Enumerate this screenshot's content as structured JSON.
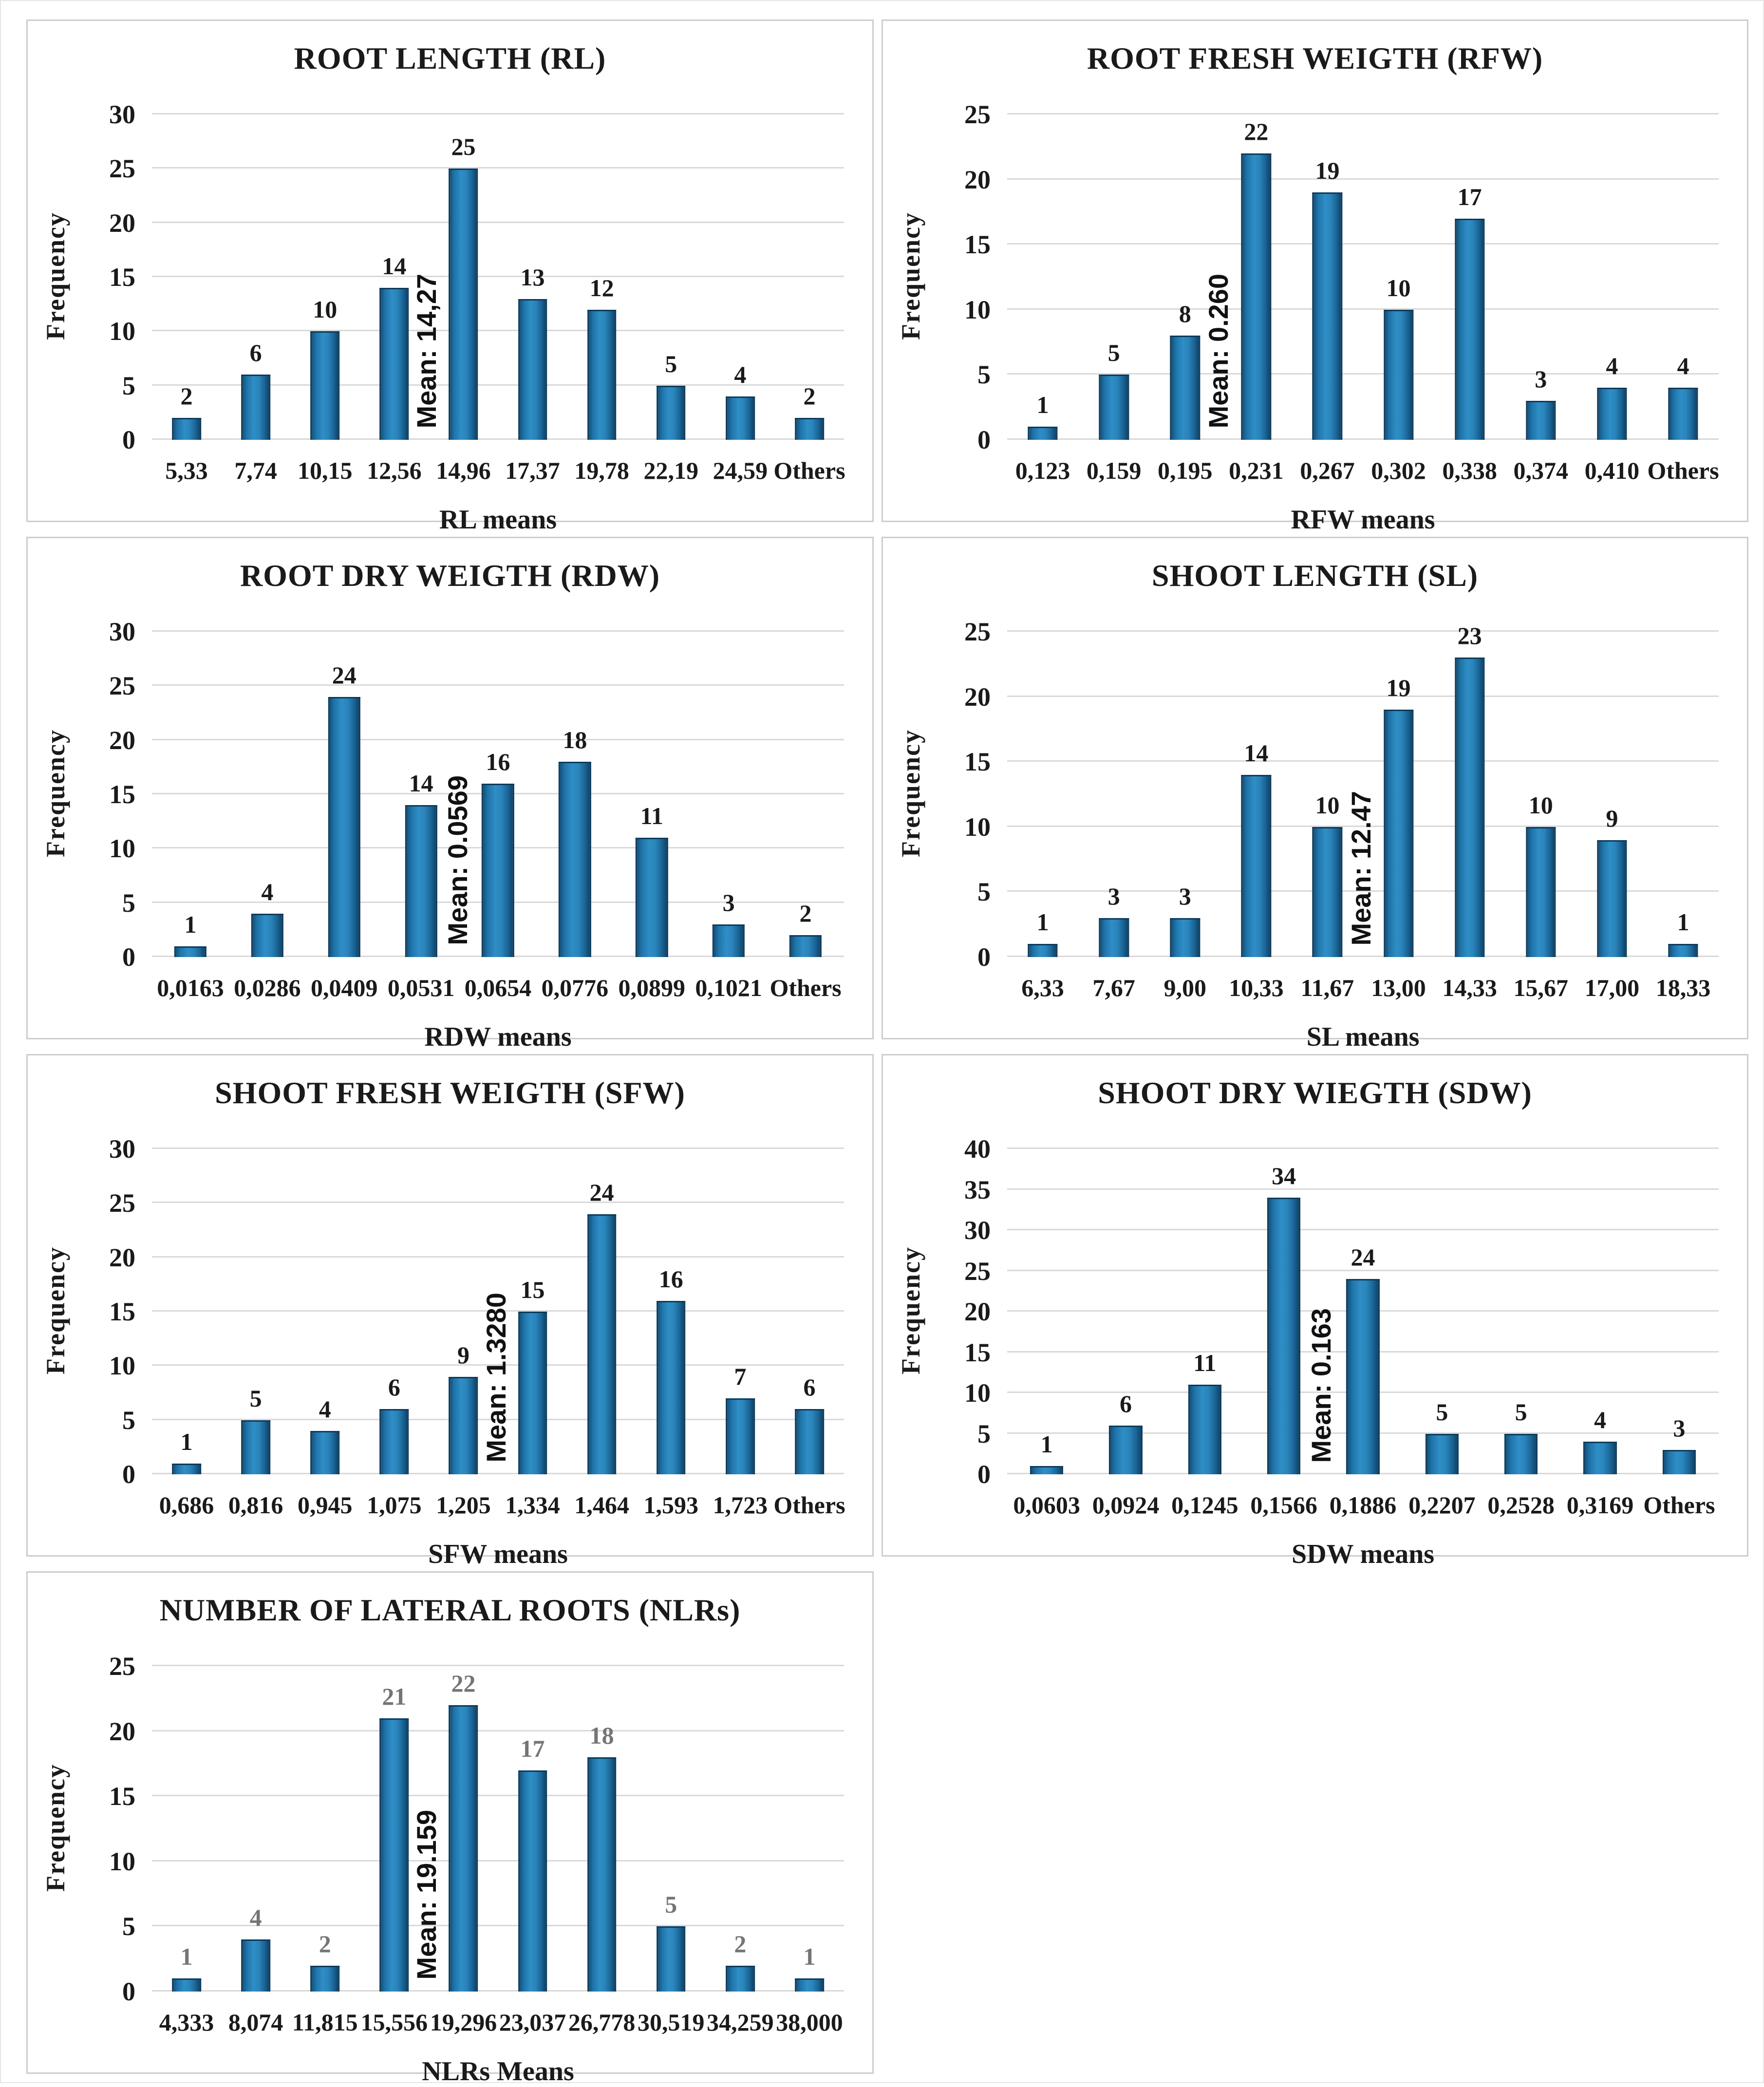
{
  "page": {
    "background": "#ffffff",
    "panel_border_color": "#cdcdcd",
    "gridline_color": "#d9d9d9"
  },
  "style": {
    "bar_fill_color": "#2a84ba",
    "bar_edge_color": "#0d3a5a",
    "label_color_default": "#1a1a1a",
    "label_color_gray": "#757575"
  },
  "chart_data": [
    {
      "id": "rl",
      "type": "bar",
      "title": "ROOT LENGTH (RL)",
      "ylabel": "Frequency",
      "xlabel": "RL means",
      "ylim": [
        0,
        30
      ],
      "ystep": 5,
      "grid": true,
      "categories": [
        "5,33",
        "7,74",
        "10,15",
        "12,56",
        "14,96",
        "17,37",
        "19,78",
        "22,19",
        "24,59",
        "Others"
      ],
      "values": [
        2,
        6,
        10,
        14,
        25,
        13,
        12,
        5,
        4,
        2
      ],
      "mean_annotation": "Mean: 14,27",
      "mean_slot": 4,
      "label_color": "#1a1a1a"
    },
    {
      "id": "rfw",
      "type": "bar",
      "title": "ROOT FRESH WEIGTH (RFW)",
      "ylabel": "Frequency",
      "xlabel": "RFW means",
      "ylim": [
        0,
        25
      ],
      "ystep": 5,
      "grid": true,
      "categories": [
        "0,123",
        "0,159",
        "0,195",
        "0,231",
        "0,267",
        "0,302",
        "0,338",
        "0,374",
        "0,410",
        "Others"
      ],
      "values": [
        1,
        5,
        8,
        22,
        19,
        10,
        17,
        3,
        4,
        4
      ],
      "mean_annotation": "Mean: 0.260",
      "mean_slot": 3,
      "label_color": "#1a1a1a"
    },
    {
      "id": "rdw",
      "type": "bar",
      "title": "ROOT DRY WEIGTH (RDW)",
      "ylabel": "Frequency",
      "xlabel": "RDW means",
      "ylim": [
        0,
        30
      ],
      "ystep": 5,
      "grid": true,
      "categories": [
        "0,0163",
        "0,0286",
        "0,0409",
        "0,0531",
        "0,0654",
        "0,0776",
        "0,0899",
        "0,1021",
        "Others"
      ],
      "values": [
        1,
        4,
        24,
        14,
        16,
        18,
        11,
        3,
        2
      ],
      "mean_annotation": "Mean: 0.0569",
      "mean_slot": 4,
      "label_color": "#1a1a1a"
    },
    {
      "id": "sl",
      "type": "bar",
      "title": "SHOOT LENGTH (SL)",
      "ylabel": "Frequency",
      "xlabel": "SL means",
      "ylim": [
        0,
        25
      ],
      "ystep": 5,
      "grid": true,
      "categories": [
        "6,33",
        "7,67",
        "9,00",
        "10,33",
        "11,67",
        "13,00",
        "14,33",
        "15,67",
        "17,00",
        "18,33"
      ],
      "values": [
        1,
        3,
        3,
        14,
        10,
        19,
        23,
        10,
        9,
        1
      ],
      "mean_annotation": "Mean: 12.47",
      "mean_slot": 5,
      "label_color": "#1a1a1a"
    },
    {
      "id": "sfw",
      "type": "bar",
      "title": "SHOOT FRESH WEIGTH (SFW)",
      "ylabel": "Frequency",
      "xlabel": "SFW means",
      "ylim": [
        0,
        30
      ],
      "ystep": 5,
      "grid": true,
      "categories": [
        "0,686",
        "0,816",
        "0,945",
        "1,075",
        "1,205",
        "1,334",
        "1,464",
        "1,593",
        "1,723",
        "Others"
      ],
      "values": [
        1,
        5,
        4,
        6,
        9,
        15,
        24,
        16,
        7,
        6
      ],
      "mean_annotation": "Mean: 1.3280",
      "mean_slot": 5,
      "label_color": "#1a1a1a"
    },
    {
      "id": "sdw",
      "type": "bar",
      "title": "SHOOT DRY WIEGTH (SDW)",
      "ylabel": "Frequency",
      "xlabel": "SDW means",
      "ylim": [
        0,
        40
      ],
      "ystep": 5,
      "grid": true,
      "categories": [
        "0,0603",
        "0,0924",
        "0,1245",
        "0,1566",
        "0,1886",
        "0,2207",
        "0,2528",
        "0,3169",
        "Others"
      ],
      "values": [
        1,
        6,
        11,
        34,
        24,
        5,
        5,
        4,
        3
      ],
      "mean_annotation": "Mean: 0.163",
      "mean_slot": 4,
      "label_color": "#1a1a1a"
    },
    {
      "id": "nlrs",
      "type": "bar",
      "title": "NUMBER OF LATERAL ROOTS (NLRs)",
      "ylabel": "Frequency",
      "xlabel": "NLRs Means",
      "ylim": [
        0,
        25
      ],
      "ystep": 5,
      "grid": true,
      "categories": [
        "4,333",
        "8,074",
        "11,815",
        "15,556",
        "19,296",
        "23,037",
        "26,778",
        "30,519",
        "34,259",
        "38,000"
      ],
      "values": [
        1,
        4,
        2,
        21,
        22,
        17,
        18,
        5,
        2,
        1
      ],
      "mean_annotation": "Mean: 19.159",
      "mean_slot": 4,
      "label_color": "#757575"
    }
  ]
}
